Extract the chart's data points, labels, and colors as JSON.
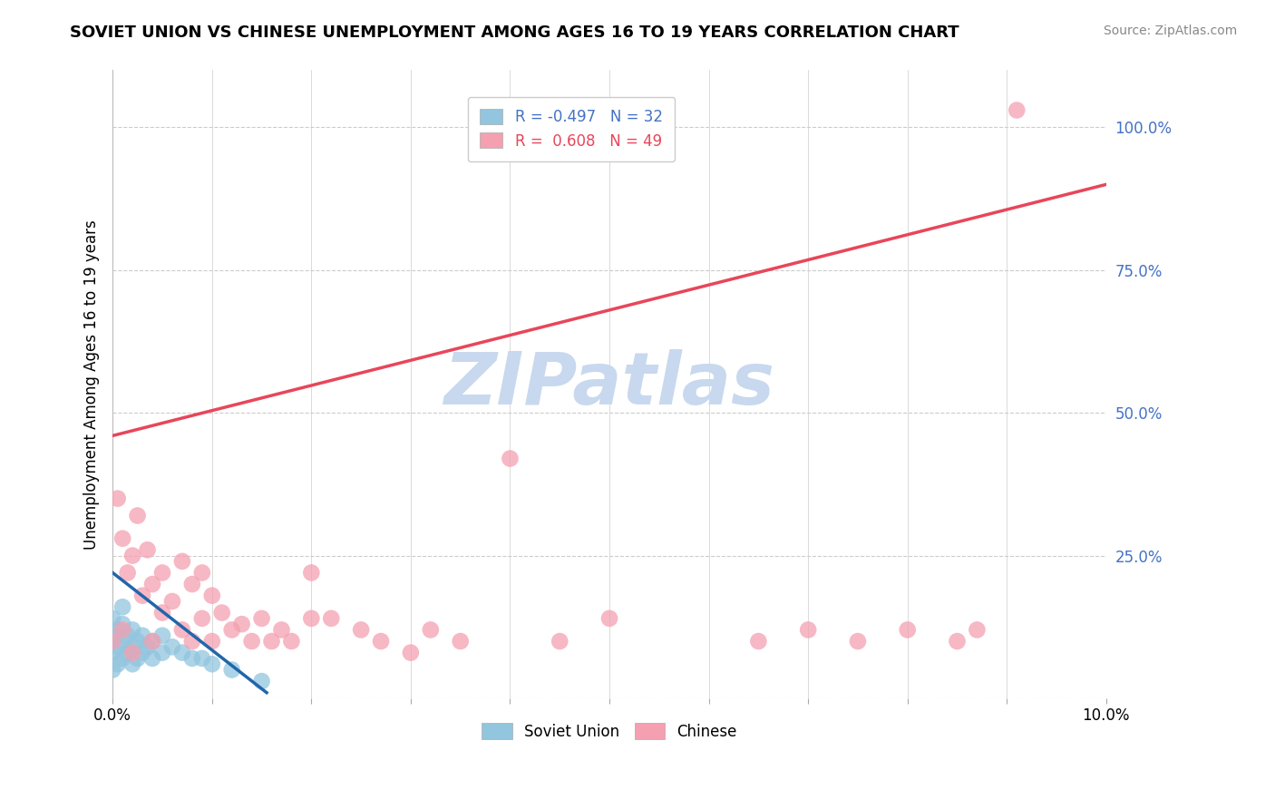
{
  "title": "SOVIET UNION VS CHINESE UNEMPLOYMENT AMONG AGES 16 TO 19 YEARS CORRELATION CHART",
  "source": "Source: ZipAtlas.com",
  "ylabel": "Unemployment Among Ages 16 to 19 years",
  "xlim": [
    0.0,
    10.0
  ],
  "ylim": [
    0.0,
    110.0
  ],
  "x_ticks": [
    0.0,
    1.0,
    2.0,
    3.0,
    4.0,
    5.0,
    6.0,
    7.0,
    8.0,
    9.0,
    10.0
  ],
  "x_tick_labels": [
    "0.0%",
    "",
    "",
    "",
    "",
    "",
    "",
    "",
    "",
    "",
    "10.0%"
  ],
  "y_ticks_right": [
    0.0,
    25.0,
    50.0,
    75.0,
    100.0
  ],
  "y_tick_labels_right": [
    "",
    "25.0%",
    "50.0%",
    "75.0%",
    "100.0%"
  ],
  "soviet_color": "#92C5DE",
  "chinese_color": "#F4A0B0",
  "soviet_line_color": "#2166AC",
  "chinese_line_color": "#E8465A",
  "soviet_R": -0.497,
  "soviet_N": 32,
  "chinese_R": 0.608,
  "chinese_N": 49,
  "watermark": "ZIPatlas",
  "watermark_color": "#C8D8EE",
  "background_color": "#FFFFFF",
  "grid_color": "#CCCCCC",
  "soviet_x": [
    0.0,
    0.0,
    0.0,
    0.0,
    0.05,
    0.05,
    0.05,
    0.1,
    0.1,
    0.1,
    0.1,
    0.15,
    0.15,
    0.2,
    0.2,
    0.2,
    0.25,
    0.25,
    0.3,
    0.3,
    0.35,
    0.4,
    0.4,
    0.5,
    0.5,
    0.6,
    0.7,
    0.8,
    0.9,
    1.0,
    1.2,
    1.5
  ],
  "soviet_y": [
    5.0,
    8.0,
    11.0,
    14.0,
    6.0,
    9.0,
    12.0,
    7.0,
    10.0,
    13.0,
    16.0,
    8.0,
    11.0,
    6.0,
    9.0,
    12.0,
    7.0,
    10.0,
    8.0,
    11.0,
    9.0,
    7.0,
    10.0,
    8.0,
    11.0,
    9.0,
    8.0,
    7.0,
    7.0,
    6.0,
    5.0,
    3.0
  ],
  "chinese_x": [
    0.0,
    0.05,
    0.1,
    0.1,
    0.15,
    0.2,
    0.2,
    0.25,
    0.3,
    0.35,
    0.4,
    0.4,
    0.5,
    0.5,
    0.6,
    0.7,
    0.7,
    0.8,
    0.8,
    0.9,
    0.9,
    1.0,
    1.0,
    1.1,
    1.2,
    1.3,
    1.4,
    1.5,
    1.6,
    1.7,
    1.8,
    2.0,
    2.0,
    2.2,
    2.5,
    2.7,
    3.0,
    3.2,
    3.5,
    4.0,
    4.5,
    5.0,
    6.5,
    7.0,
    7.5,
    8.0,
    8.5,
    8.7,
    9.1
  ],
  "chinese_y": [
    10.0,
    35.0,
    12.0,
    28.0,
    22.0,
    8.0,
    25.0,
    32.0,
    18.0,
    26.0,
    10.0,
    20.0,
    15.0,
    22.0,
    17.0,
    12.0,
    24.0,
    10.0,
    20.0,
    14.0,
    22.0,
    10.0,
    18.0,
    15.0,
    12.0,
    13.0,
    10.0,
    14.0,
    10.0,
    12.0,
    10.0,
    22.0,
    14.0,
    14.0,
    12.0,
    10.0,
    8.0,
    12.0,
    10.0,
    42.0,
    10.0,
    14.0,
    10.0,
    12.0,
    10.0,
    12.0,
    10.0,
    12.0,
    103.0
  ],
  "soviet_line_x0": 0.0,
  "soviet_line_y0": 22.0,
  "soviet_line_x1": 1.55,
  "soviet_line_y1": 1.0,
  "chinese_line_x0": 0.0,
  "chinese_line_y0": 46.0,
  "chinese_line_x1": 10.0,
  "chinese_line_y1": 90.0
}
